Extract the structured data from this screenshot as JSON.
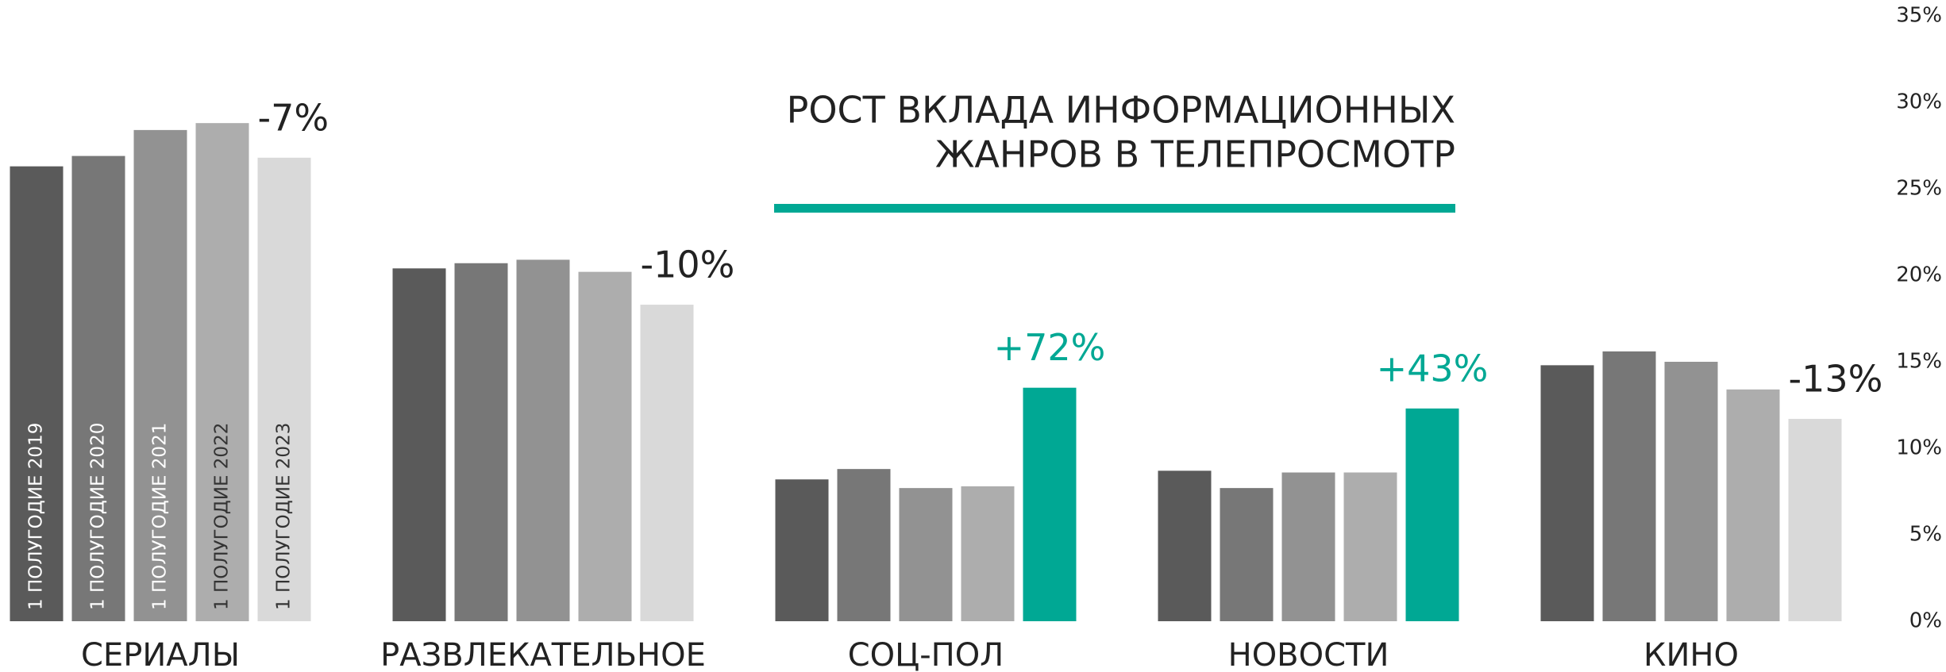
{
  "chart_data": {
    "type": "bar",
    "title": [
      "РОСТ ВКЛАДА ИНФОРМАЦИОННЫХ",
      "ЖАНРОВ В ТЕЛЕПРОСМОТР"
    ],
    "title_rule_color": "#00a894",
    "categories": [
      "СЕРИАЛЫ",
      "РАЗВЛЕКАТЕЛЬНОЕ",
      "СОЦ-ПОЛ",
      "НОВОСТИ",
      "КИНО"
    ],
    "series": [
      {
        "name": "1 ПОЛУГОДИЕ 2019",
        "color": "#5a5a5a",
        "values": [
          26.3,
          20.4,
          8.2,
          8.7,
          14.8
        ]
      },
      {
        "name": "1 ПОЛУГОДИЕ 2020",
        "color": "#777777",
        "values": [
          26.9,
          20.7,
          8.8,
          7.7,
          15.6
        ]
      },
      {
        "name": "1 ПОЛУГОДИЕ 2021",
        "color": "#929292",
        "values": [
          28.4,
          20.9,
          7.7,
          8.6,
          15.0
        ]
      },
      {
        "name": "1 ПОЛУГОДИЕ 2022",
        "color": "#adadad",
        "values": [
          28.8,
          20.2,
          7.8,
          8.6,
          13.4
        ]
      },
      {
        "name": "1 ПОЛУГОДИЕ 2023",
        "color": "#d9d9d9",
        "colors": [
          "#d9d9d9",
          "#d9d9d9",
          "#00a894",
          "#00a894",
          "#d9d9d9"
        ],
        "values": [
          26.8,
          18.3,
          13.5,
          12.3,
          11.7
        ]
      }
    ],
    "change_labels": [
      "-7%",
      "-10%",
      "+72%",
      "+43%",
      "-13%"
    ],
    "change_label_colors": [
      "#222222",
      "#222222",
      "#00a894",
      "#00a894",
      "#222222"
    ],
    "ylim": [
      0,
      35
    ],
    "yticks": [
      {
        "value": 0,
        "label": "0%"
      },
      {
        "value": 5,
        "label": "5%"
      },
      {
        "value": 10,
        "label": "10%"
      },
      {
        "value": 15,
        "label": "15%"
      },
      {
        "value": 20,
        "label": "20%"
      },
      {
        "value": 25,
        "label": "25%"
      },
      {
        "value": 30,
        "label": "30%"
      },
      {
        "value": 35,
        "label": "35%"
      }
    ],
    "grid": false
  }
}
